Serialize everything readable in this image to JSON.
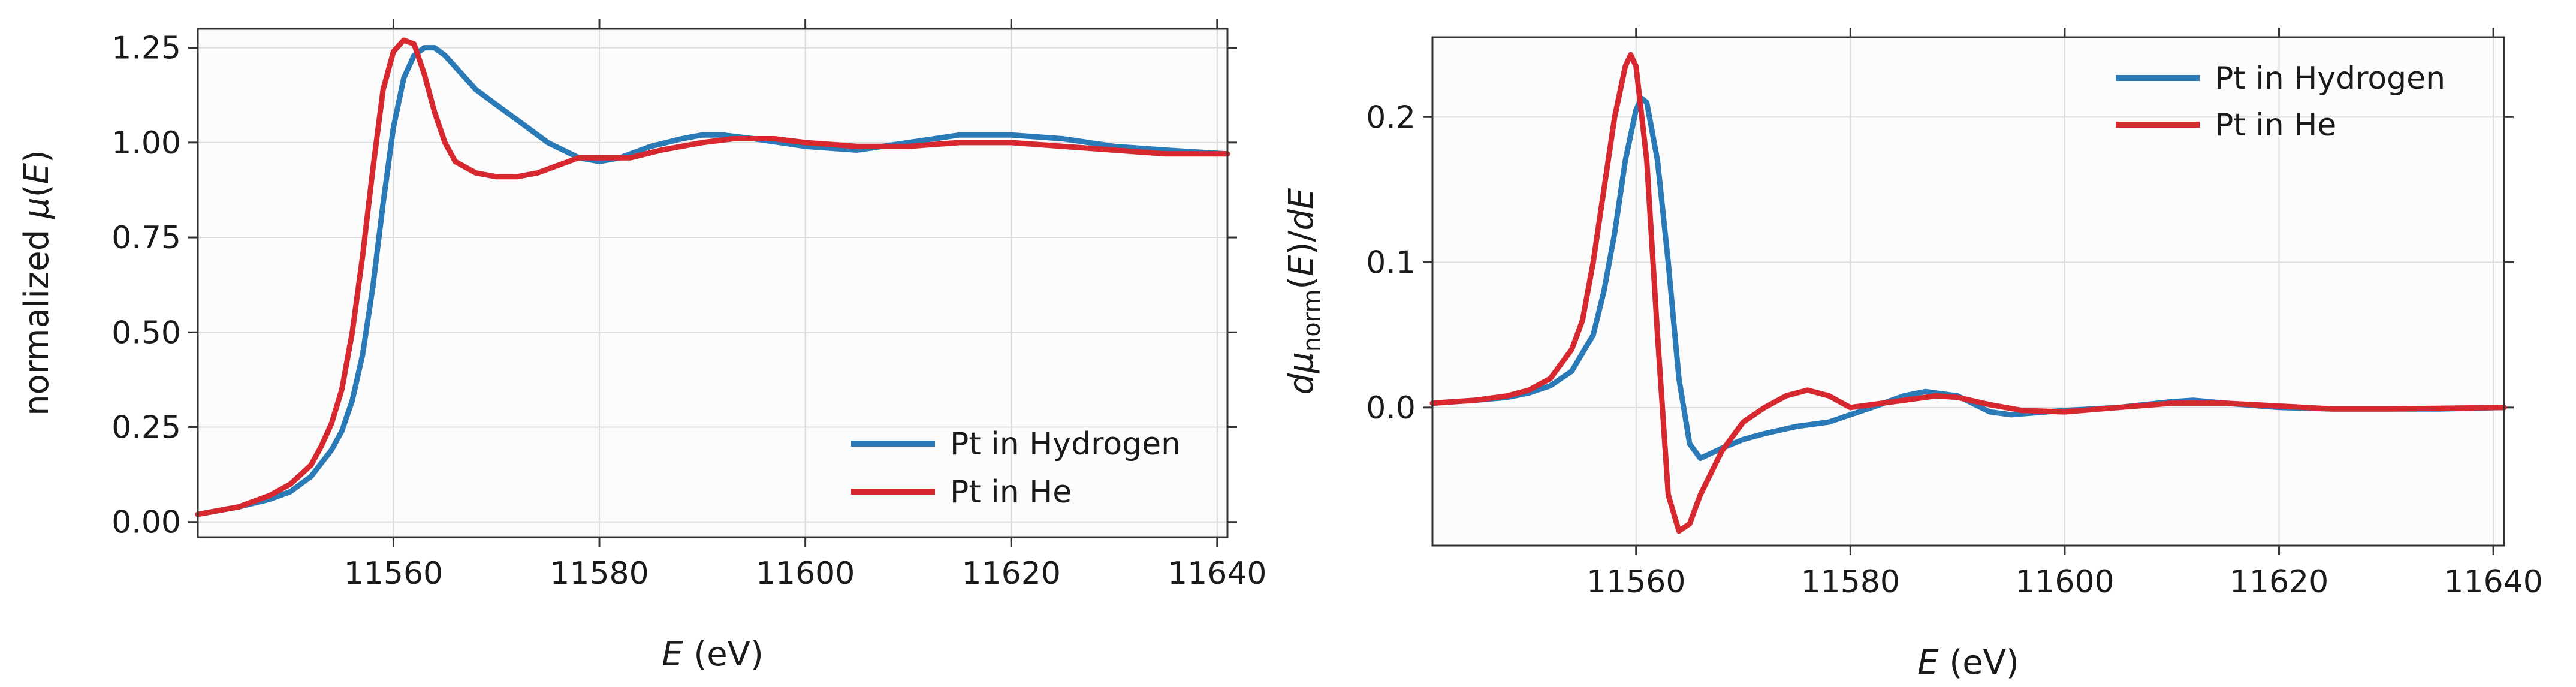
{
  "colors": {
    "hydrogen": "#2a7ab8",
    "he": "#d6282e"
  },
  "chart_data": [
    {
      "type": "line",
      "xlabel_var": "E",
      "xlabel_unit": " (eV)",
      "ylabel_pre": "normalized ",
      "ylabel_mu": "μ",
      "ylabel_open": "(",
      "ylabel_var": "E",
      "ylabel_close": ")",
      "xlim": [
        11541,
        11641
      ],
      "ylim": [
        -0.04,
        1.3
      ],
      "xticks": [
        11560,
        11580,
        11600,
        11620,
        11640
      ],
      "yticks": [
        0.0,
        0.25,
        0.5,
        0.75,
        1.0,
        1.25
      ],
      "ytick_labels": [
        "0.00",
        "0.25",
        "0.50",
        "0.75",
        "1.00",
        "1.25"
      ],
      "legend_position": "bottom-right",
      "series": [
        {
          "name": "Pt in Hydrogen",
          "color_key": "hydrogen",
          "x": [
            11541,
            11545,
            11548,
            11550,
            11552,
            11554,
            11555,
            11556,
            11557,
            11558,
            11559,
            11560,
            11561,
            11562,
            11563,
            11564,
            11565,
            11566,
            11568,
            11570,
            11572,
            11575,
            11578,
            11580,
            11582,
            11585,
            11588,
            11590,
            11592,
            11595,
            11600,
            11605,
            11610,
            11615,
            11618,
            11620,
            11625,
            11630,
            11635,
            11641
          ],
          "y": [
            0.02,
            0.04,
            0.06,
            0.08,
            0.12,
            0.19,
            0.24,
            0.32,
            0.44,
            0.62,
            0.84,
            1.04,
            1.17,
            1.23,
            1.25,
            1.25,
            1.23,
            1.2,
            1.14,
            1.1,
            1.06,
            1.0,
            0.96,
            0.95,
            0.96,
            0.99,
            1.01,
            1.02,
            1.02,
            1.01,
            0.99,
            0.98,
            1.0,
            1.02,
            1.02,
            1.02,
            1.01,
            0.99,
            0.98,
            0.97
          ]
        },
        {
          "name": "Pt in He",
          "color_key": "he",
          "x": [
            11541,
            11545,
            11548,
            11550,
            11552,
            11553,
            11554,
            11555,
            11556,
            11557,
            11558,
            11559,
            11560,
            11561,
            11562,
            11563,
            11564,
            11565,
            11566,
            11568,
            11570,
            11572,
            11574,
            11576,
            11578,
            11580,
            11583,
            11586,
            11590,
            11593,
            11597,
            11600,
            11605,
            11610,
            11615,
            11620,
            11625,
            11630,
            11635,
            11641
          ],
          "y": [
            0.02,
            0.04,
            0.07,
            0.1,
            0.15,
            0.2,
            0.26,
            0.35,
            0.5,
            0.7,
            0.93,
            1.14,
            1.24,
            1.27,
            1.26,
            1.18,
            1.08,
            1.0,
            0.95,
            0.92,
            0.91,
            0.91,
            0.92,
            0.94,
            0.96,
            0.96,
            0.96,
            0.98,
            1.0,
            1.01,
            1.01,
            1.0,
            0.99,
            0.99,
            1.0,
            1.0,
            0.99,
            0.98,
            0.97,
            0.97
          ]
        }
      ]
    },
    {
      "type": "line",
      "xlabel_var": "E",
      "xlabel_unit": " (eV)",
      "ylabel_d": "d",
      "ylabel_mu": "μ",
      "ylabel_sub": "norm",
      "ylabel_mid": "(",
      "ylabel_var": "E",
      "ylabel_close": ")/",
      "ylabel_dE": "dE",
      "xlim": [
        11541,
        11641
      ],
      "ylim": [
        -0.095,
        0.255
      ],
      "xticks": [
        11560,
        11580,
        11600,
        11620,
        11640
      ],
      "yticks": [
        0.0,
        0.1,
        0.2
      ],
      "ytick_labels": [
        "0.0",
        "0.1",
        "0.2"
      ],
      "legend_position": "top-right",
      "series": [
        {
          "name": "Pt in Hydrogen",
          "color_key": "hydrogen",
          "x": [
            11541,
            11545,
            11548,
            11550,
            11552,
            11554,
            11556,
            11557,
            11558,
            11559,
            11560,
            11560.5,
            11561,
            11562,
            11563,
            11564,
            11565,
            11566,
            11568,
            11570,
            11572,
            11575,
            11578,
            11580,
            11582,
            11585,
            11587,
            11590,
            11593,
            11595,
            11600,
            11605,
            11610,
            11612,
            11615,
            11620,
            11625,
            11630,
            11635,
            11641
          ],
          "y": [
            0.003,
            0.005,
            0.007,
            0.01,
            0.015,
            0.025,
            0.05,
            0.08,
            0.12,
            0.17,
            0.205,
            0.213,
            0.21,
            0.17,
            0.1,
            0.02,
            -0.025,
            -0.035,
            -0.028,
            -0.022,
            -0.018,
            -0.013,
            -0.01,
            -0.005,
            0.0,
            0.008,
            0.011,
            0.008,
            -0.003,
            -0.005,
            -0.002,
            0.0,
            0.004,
            0.005,
            0.003,
            0.0,
            -0.001,
            -0.001,
            -0.001,
            0.0
          ]
        },
        {
          "name": "Pt in He",
          "color_key": "he",
          "x": [
            11541,
            11545,
            11548,
            11550,
            11552,
            11554,
            11555,
            11556,
            11557,
            11558,
            11559,
            11559.5,
            11560,
            11561,
            11562,
            11563,
            11564,
            11565,
            11566,
            11568,
            11570,
            11572,
            11574,
            11576,
            11578,
            11580,
            11583,
            11586,
            11588,
            11590,
            11593,
            11596,
            11600,
            11605,
            11610,
            11615,
            11620,
            11625,
            11630,
            11641
          ],
          "y": [
            0.003,
            0.005,
            0.008,
            0.012,
            0.02,
            0.04,
            0.06,
            0.1,
            0.15,
            0.2,
            0.235,
            0.243,
            0.235,
            0.17,
            0.05,
            -0.06,
            -0.085,
            -0.08,
            -0.06,
            -0.03,
            -0.01,
            0.0,
            0.008,
            0.012,
            0.008,
            0.0,
            0.003,
            0.006,
            0.008,
            0.007,
            0.002,
            -0.002,
            -0.003,
            0.0,
            0.003,
            0.003,
            0.001,
            -0.001,
            -0.001,
            0.0
          ]
        }
      ]
    }
  ]
}
